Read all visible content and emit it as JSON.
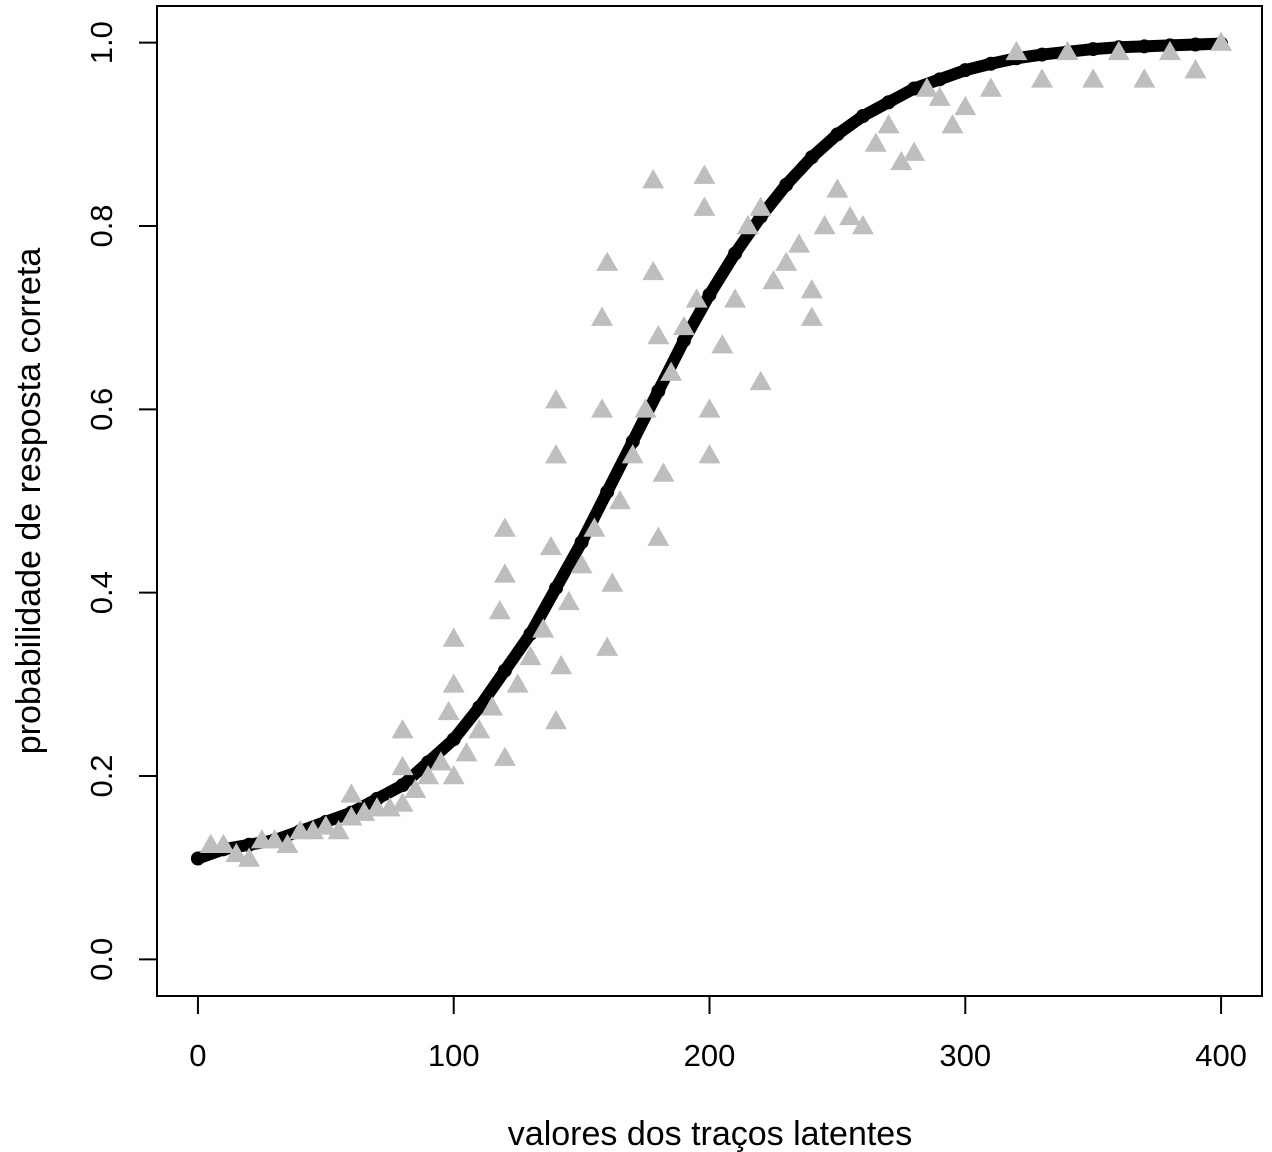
{
  "chart_data": {
    "type": "scatter",
    "x_label": "valores dos traços latentes",
    "y_label": "probabilidade de resposta correta",
    "xlim": [
      -16,
      416
    ],
    "ylim": [
      -0.04,
      1.04
    ],
    "xticks": [
      0,
      100,
      200,
      300,
      400
    ],
    "yticks": [
      {
        "value": 0,
        "label": "0.0"
      },
      0.2,
      0.4,
      0.6,
      0.8,
      {
        "value": 1,
        "label": "1.0"
      }
    ],
    "series": [
      {
        "color": "#000000",
        "marker": "circle",
        "x": [
          0,
          10,
          20,
          30,
          40,
          50,
          60,
          70,
          80,
          90,
          100,
          110,
          120,
          130,
          140,
          150,
          160,
          170,
          180,
          190,
          200,
          210,
          220,
          230,
          240,
          250,
          260,
          270,
          280,
          290,
          300,
          310,
          320,
          330,
          340,
          350,
          360,
          370,
          380,
          390,
          400
        ],
        "values": [
          0.11,
          0.12,
          0.125,
          0.13,
          0.14,
          0.15,
          0.16,
          0.175,
          0.19,
          0.215,
          0.24,
          0.275,
          0.315,
          0.355,
          0.405,
          0.455,
          0.51,
          0.565,
          0.62,
          0.675,
          0.725,
          0.77,
          0.81,
          0.845,
          0.875,
          0.9,
          0.92,
          0.935,
          0.95,
          0.96,
          0.97,
          0.977,
          0.983,
          0.987,
          0.99,
          0.993,
          0.995,
          0.996,
          0.997,
          0.998,
          0.999
        ]
      },
      {
        "color": "#bebebe",
        "marker": "triangle",
        "x": [
          5,
          10,
          15,
          20,
          25,
          30,
          35,
          40,
          45,
          50,
          55,
          60,
          60,
          65,
          70,
          75,
          80,
          80,
          80,
          85,
          90,
          95,
          98,
          100,
          100,
          100,
          105,
          110,
          115,
          118,
          120,
          120,
          120,
          125,
          130,
          135,
          138,
          140,
          140,
          140,
          142,
          145,
          150,
          155,
          158,
          158,
          160,
          160,
          162,
          165,
          170,
          175,
          178,
          178,
          180,
          180,
          182,
          185,
          190,
          195,
          198,
          198,
          200,
          200,
          205,
          210,
          215,
          220,
          220,
          225,
          230,
          235,
          240,
          240,
          245,
          250,
          255,
          260,
          265,
          270,
          275,
          280,
          285,
          290,
          295,
          300,
          310,
          320,
          330,
          340,
          350,
          360,
          370,
          380,
          390,
          400
        ],
        "values": [
          0.125,
          0.125,
          0.115,
          0.11,
          0.13,
          0.13,
          0.125,
          0.14,
          0.14,
          0.145,
          0.14,
          0.18,
          0.155,
          0.16,
          0.165,
          0.165,
          0.25,
          0.21,
          0.17,
          0.185,
          0.2,
          0.215,
          0.27,
          0.35,
          0.3,
          0.2,
          0.225,
          0.25,
          0.275,
          0.38,
          0.47,
          0.42,
          0.22,
          0.3,
          0.33,
          0.36,
          0.45,
          0.61,
          0.55,
          0.26,
          0.32,
          0.39,
          0.43,
          0.47,
          0.7,
          0.6,
          0.76,
          0.34,
          0.41,
          0.5,
          0.55,
          0.6,
          0.85,
          0.75,
          0.46,
          0.68,
          0.53,
          0.64,
          0.69,
          0.72,
          0.855,
          0.82,
          0.55,
          0.6,
          0.67,
          0.72,
          0.8,
          0.82,
          0.63,
          0.74,
          0.76,
          0.78,
          0.7,
          0.73,
          0.8,
          0.84,
          0.81,
          0.8,
          0.89,
          0.91,
          0.87,
          0.88,
          0.95,
          0.94,
          0.91,
          0.93,
          0.95,
          0.99,
          0.96,
          0.99,
          0.96,
          0.99,
          0.96,
          0.99,
          0.97,
          1.0
        ]
      }
    ]
  }
}
